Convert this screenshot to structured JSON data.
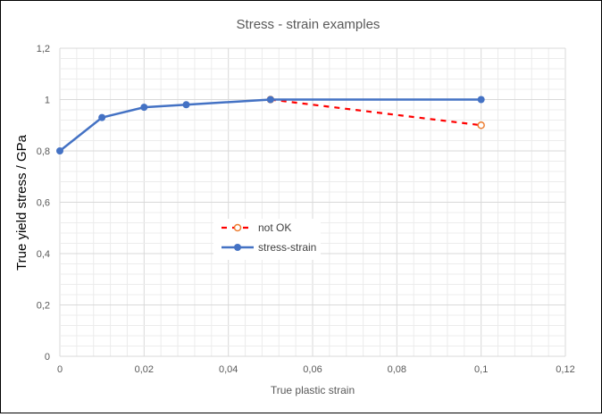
{
  "chart_data": {
    "type": "line",
    "title": "Stress - strain examples",
    "xlabel": "True plastic strain",
    "ylabel": "True yield stress / GPa",
    "xlim": [
      0,
      0.12
    ],
    "ylim": [
      0,
      1.2
    ],
    "x_ticks": [
      "0",
      "0,02",
      "0,04",
      "0,06",
      "0,08",
      "0,1",
      "0,12"
    ],
    "y_ticks": [
      "0",
      "0,2",
      "0,4",
      "0,6",
      "0,8",
      "1",
      "1,2"
    ],
    "grid": {
      "major": true,
      "minor": true
    },
    "legend_position": "center-left",
    "series": [
      {
        "name": "not OK",
        "color": "#ff0000",
        "marker_color": "#ed7d31",
        "style": "dashed",
        "marker": "hollow-circle",
        "x": [
          0.05,
          0.1
        ],
        "y": [
          1,
          0.9
        ]
      },
      {
        "name": "stress-strain",
        "color": "#4472c4",
        "style": "solid",
        "marker": "filled-circle",
        "x": [
          0,
          0.01,
          0.02,
          0.03,
          0.05,
          0.1
        ],
        "y": [
          0.8,
          0.93,
          0.97,
          0.98,
          1,
          1
        ]
      }
    ]
  }
}
